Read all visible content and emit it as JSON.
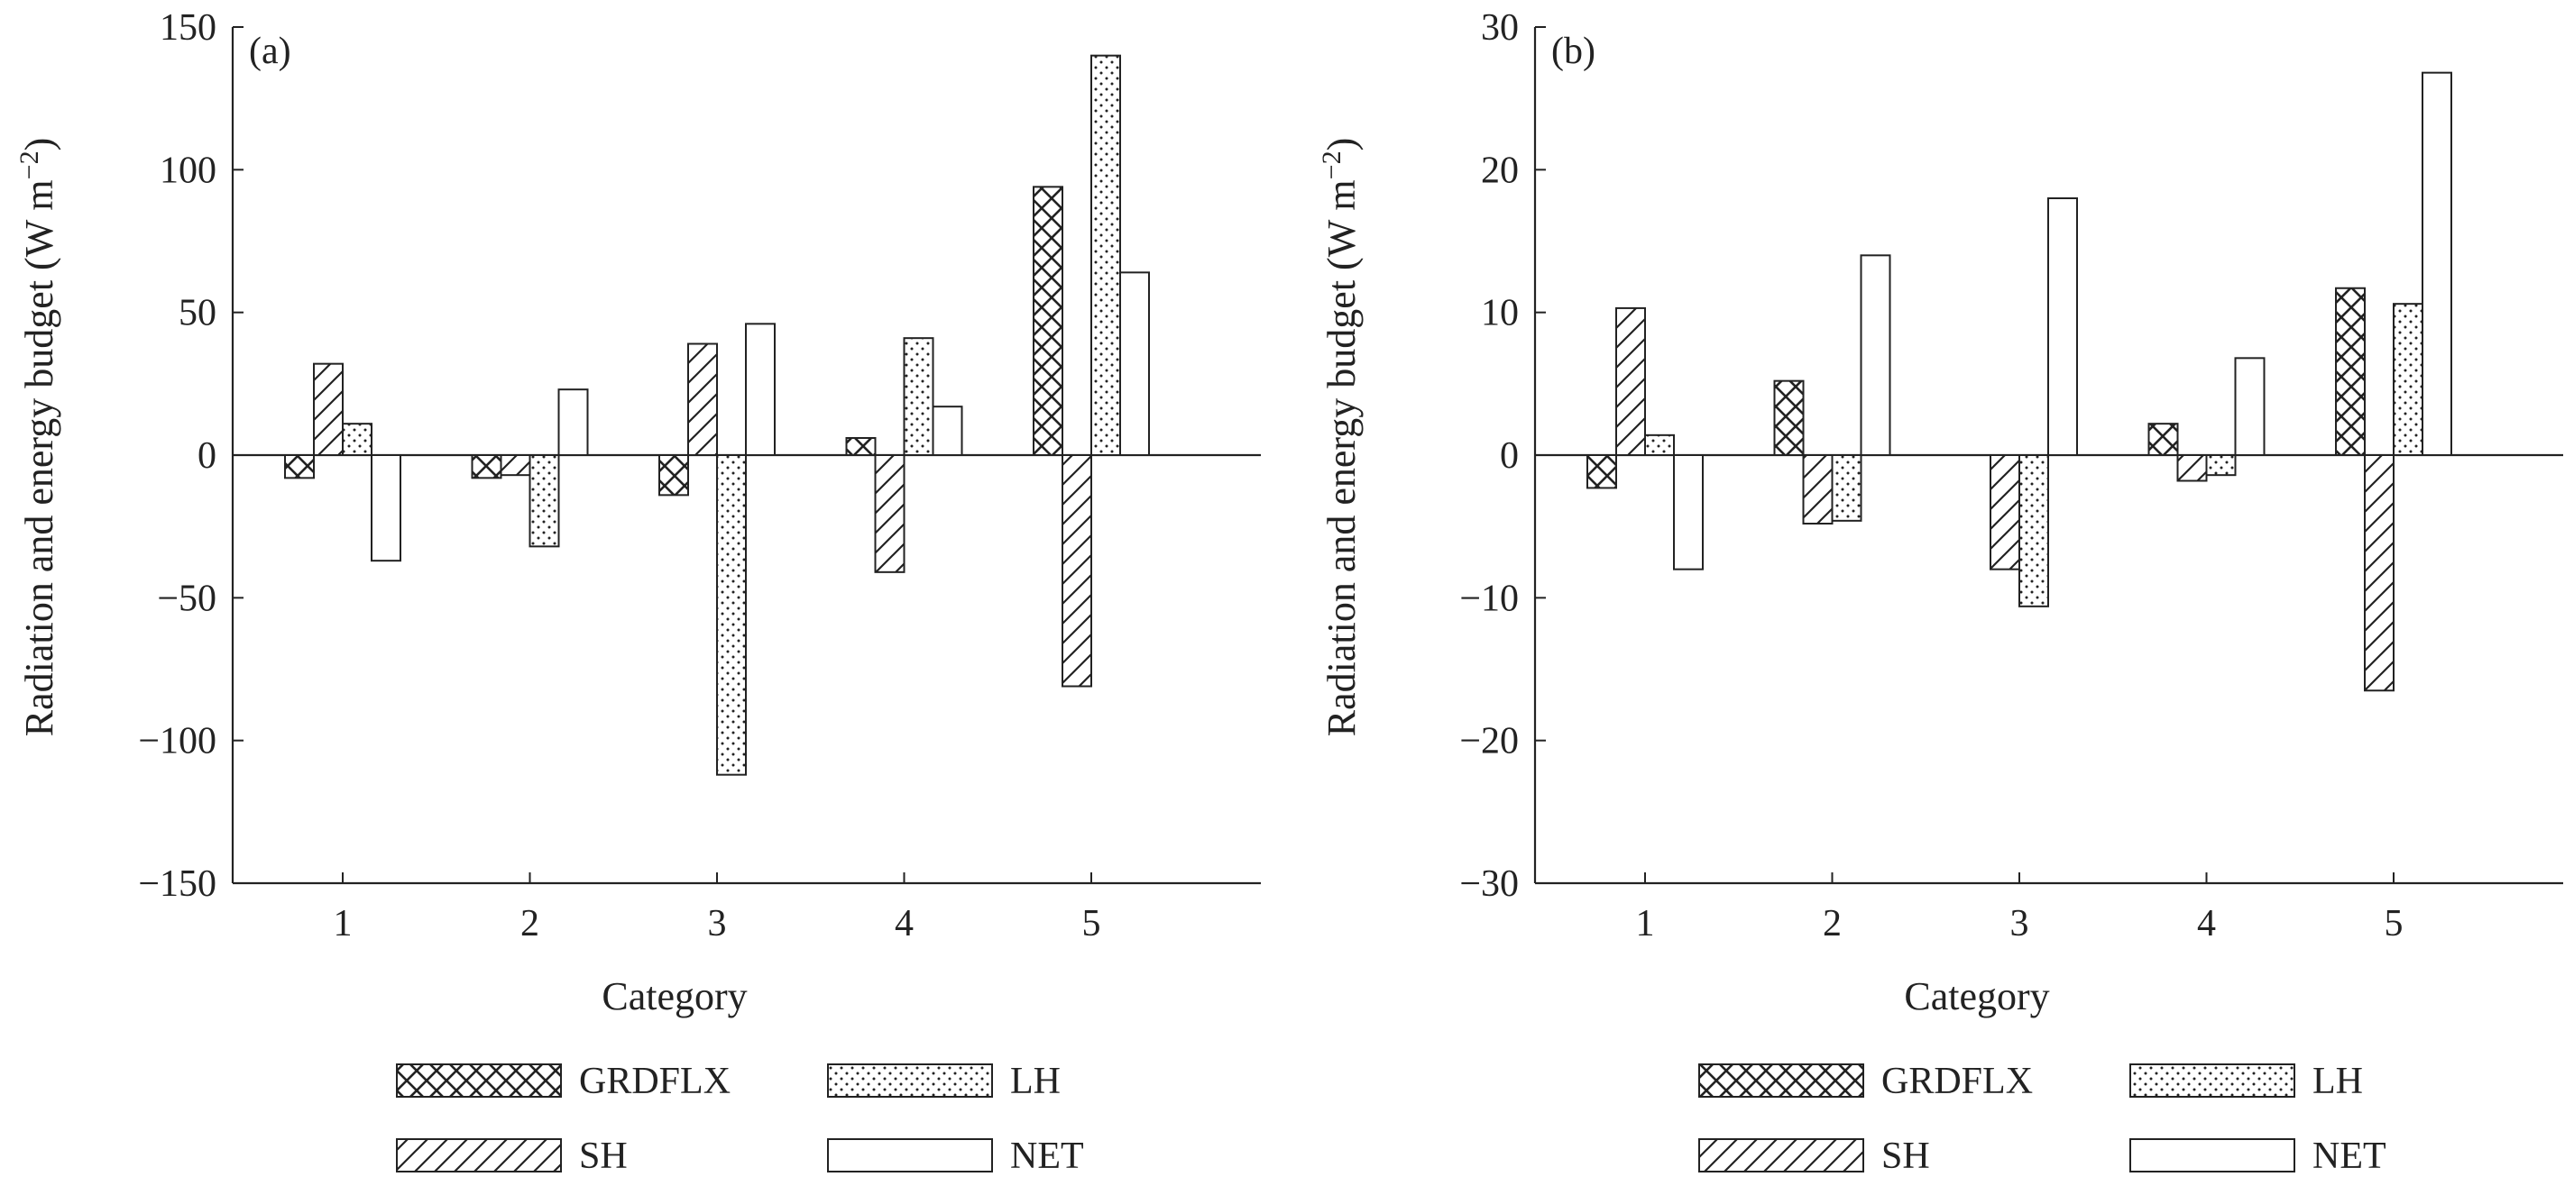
{
  "legend_order": [
    "GRDFLX",
    "LH",
    "SH",
    "NET"
  ],
  "chart_data": [
    {
      "type": "bar",
      "panel_label": "(a)",
      "xlabel": "Category",
      "ylabel": "Radiation and energy budget (W m",
      "ylabel_sup": "−2",
      "ylabel_close": ")",
      "ylim": [
        -150,
        150
      ],
      "yticks": [
        150,
        100,
        50,
        0,
        -50,
        -100,
        -150
      ],
      "ytick_labels": [
        "150",
        "100",
        "50",
        "0",
        "−50",
        "−100",
        "−150"
      ],
      "categories": [
        "1",
        "2",
        "3",
        "4",
        "5"
      ],
      "grid": false,
      "legend_position": "bottom",
      "series": [
        {
          "name": "GRDFLX",
          "pattern": "crosshatch",
          "values": [
            -8,
            -8,
            -14,
            6,
            94
          ]
        },
        {
          "name": "SH",
          "pattern": "diagonal",
          "values": [
            32,
            -7,
            39,
            -41,
            -81
          ]
        },
        {
          "name": "LH",
          "pattern": "dots",
          "values": [
            11,
            -32,
            -112,
            41,
            140
          ]
        },
        {
          "name": "NET",
          "pattern": "empty",
          "values": [
            -37,
            23,
            46,
            17,
            64
          ]
        }
      ]
    },
    {
      "type": "bar",
      "panel_label": "(b)",
      "xlabel": "Category",
      "ylabel": "Radiation and energy budget (W m",
      "ylabel_sup": "−2",
      "ylabel_close": ")",
      "ylim": [
        -30,
        30
      ],
      "yticks": [
        30,
        20,
        10,
        0,
        -10,
        -20,
        -30
      ],
      "ytick_labels": [
        "30",
        "20",
        "10",
        "0",
        "−10",
        "−20",
        "−30"
      ],
      "categories": [
        "1",
        "2",
        "3",
        "4",
        "5"
      ],
      "grid": false,
      "legend_position": "bottom",
      "series": [
        {
          "name": "GRDFLX",
          "pattern": "crosshatch",
          "values": [
            -2.3,
            5.2,
            0,
            2.2,
            11.7
          ]
        },
        {
          "name": "SH",
          "pattern": "diagonal",
          "values": [
            10.3,
            -4.8,
            -8,
            -1.8,
            -16.5
          ]
        },
        {
          "name": "LH",
          "pattern": "dots",
          "values": [
            1.4,
            -4.6,
            -10.6,
            -1.4,
            10.6
          ]
        },
        {
          "name": "NET",
          "pattern": "empty",
          "values": [
            -8,
            14,
            18,
            6.8,
            26.8
          ]
        }
      ]
    }
  ]
}
